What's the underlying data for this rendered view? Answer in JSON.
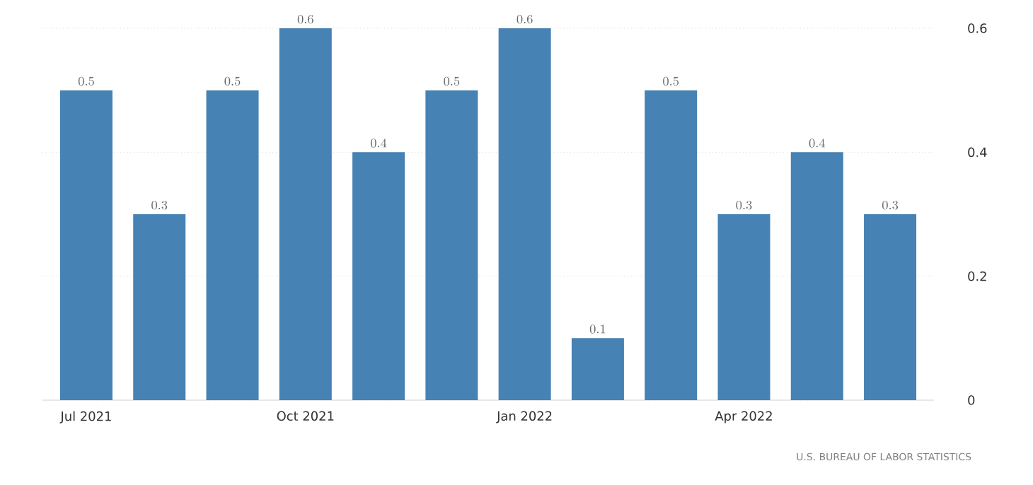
{
  "chart_data": {
    "type": "bar",
    "categories": [
      "Jul 2021",
      null,
      null,
      "Oct 2021",
      null,
      null,
      "Jan 2022",
      null,
      null,
      "Apr 2022",
      null,
      null
    ],
    "values": [
      0.5,
      0.3,
      0.5,
      0.6,
      0.4,
      0.5,
      0.6,
      0.1,
      0.5,
      0.3,
      0.4,
      0.3
    ],
    "color": "#4682b4",
    "ylim": [
      0,
      0.6
    ],
    "yticks": [
      0,
      0.2,
      0.4,
      0.6
    ],
    "grid": "y",
    "data_labels": true,
    "annotations": [
      "U.S. BUREAU OF LABOR STATISTICS"
    ]
  }
}
